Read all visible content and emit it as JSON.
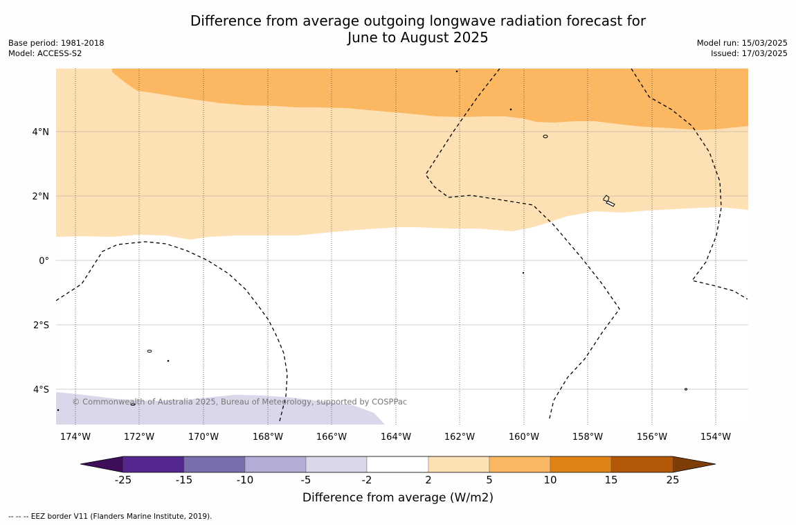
{
  "header": {
    "title_line1": "Difference from average outgoing longwave radiation forecast for",
    "title_line2": "June to August 2025",
    "base_period": "Base period: 1981-2018",
    "model": "Model: ACCESS-S2",
    "model_run": "Model run: 15/03/2025",
    "issued": "Issued: 17/03/2025"
  },
  "map": {
    "lon_labels": [
      "174°W",
      "172°W",
      "170°W",
      "168°W",
      "166°W",
      "164°W",
      "162°W",
      "160°W",
      "158°W",
      "156°W",
      "154°W"
    ],
    "lat_labels": [
      "4°N",
      "2°N",
      "0°",
      "2°S",
      "4°S"
    ],
    "copyright": "© Commonwealth of Australia 2025, Bureau of Meteorology, supported by COSPPac"
  },
  "colorbar": {
    "ticks": [
      "-25",
      "-15",
      "-10",
      "-5",
      "-2",
      "2",
      "5",
      "10",
      "15",
      "25"
    ],
    "colors": [
      "#3f0e5a",
      "#54278f",
      "#7b6ead",
      "#b3acd6",
      "#d9d8ea",
      "#ffffff",
      "#fde0b4",
      "#fbb762",
      "#e08314",
      "#b35806",
      "#7e3c07"
    ],
    "label": "Difference from average (W/m2)"
  },
  "footer": {
    "legend_text": "--  --  -- EEZ border V11 (Flanders Marine Institute, 2019)."
  }
}
